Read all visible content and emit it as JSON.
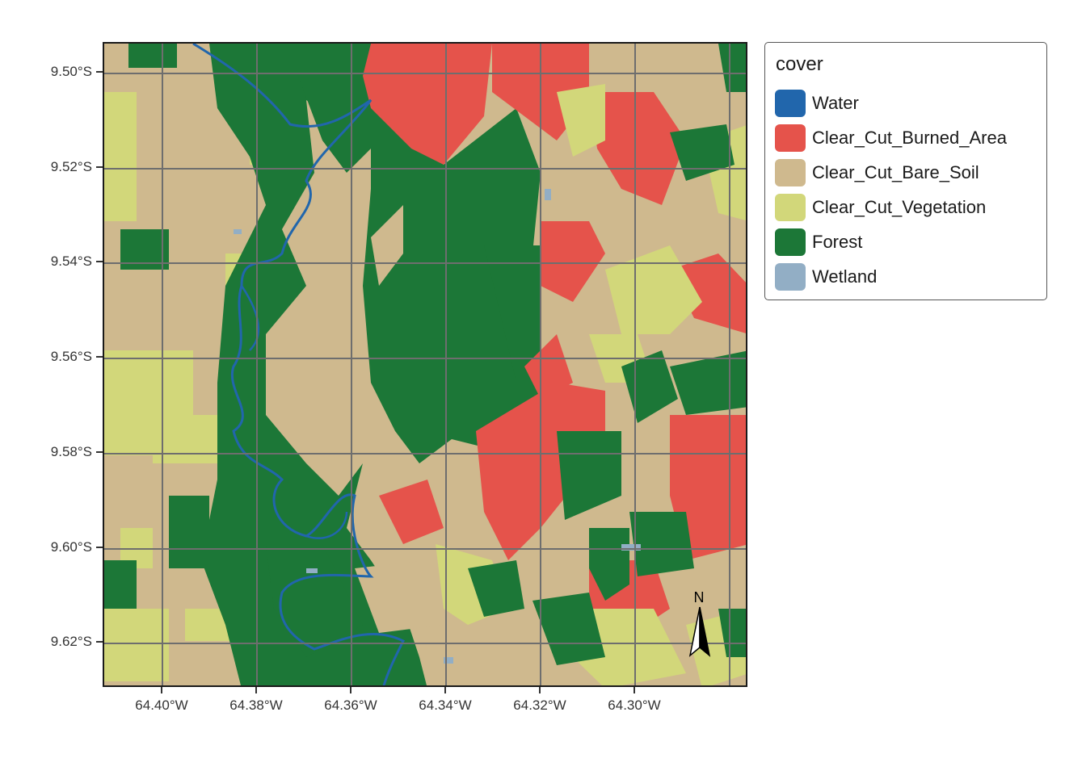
{
  "legend": {
    "title": "cover",
    "items": [
      {
        "label": "Water",
        "color": "#2166ac"
      },
      {
        "label": "Clear_Cut_Burned_Area",
        "color": "#e5534b"
      },
      {
        "label": "Clear_Cut_Bare_Soil",
        "color": "#cfb98e"
      },
      {
        "label": "Clear_Cut_Vegetation",
        "color": "#d2d77a"
      },
      {
        "label": "Forest",
        "color": "#1c7737"
      },
      {
        "label": "Wetland",
        "color": "#92aec5"
      }
    ]
  },
  "axes": {
    "lat_labels": [
      "9.50°S",
      "9.52°S",
      "9.54°S",
      "9.56°S",
      "9.58°S",
      "9.60°S",
      "9.62°S"
    ],
    "lon_labels": [
      "64.40°W",
      "64.38°W",
      "64.36°W",
      "64.34°W",
      "64.32°W",
      "64.30°W"
    ]
  },
  "north_arrow": {
    "label": "N"
  },
  "colors": {
    "grid": "#6e6e6e",
    "frame": "#1a1a1a"
  }
}
